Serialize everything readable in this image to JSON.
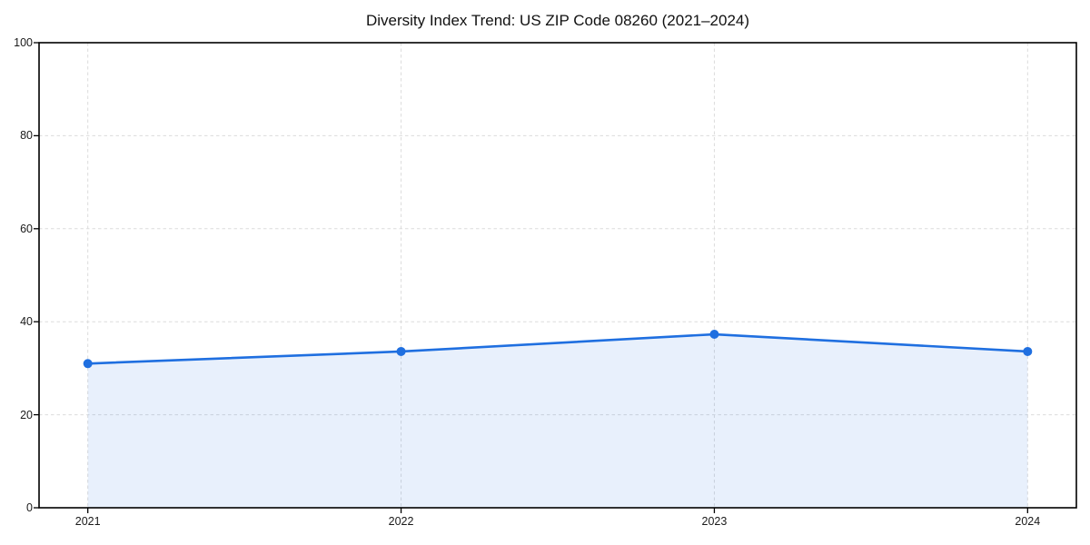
{
  "chart_data": {
    "type": "area",
    "title": "Diversity Index Trend: US ZIP Code 08260 (2021–2024)",
    "series_name": "Diversity Index",
    "categories": [
      "2021",
      "2022",
      "2023",
      "2024"
    ],
    "x": [
      2021,
      2022,
      2023,
      2024
    ],
    "values": [
      31.0,
      33.6,
      37.3,
      33.6
    ],
    "xlabel": "",
    "ylabel": "",
    "ylim": [
      0,
      100
    ],
    "yticks": [
      0,
      20,
      40,
      60,
      80,
      100
    ],
    "grid": true,
    "grid_style": "dashed",
    "legend_position": "none",
    "marker": "circle",
    "marker_radius": 5,
    "line_width": 2.6,
    "x_margin_frac": 0.047,
    "colors": {
      "line": "#1f6fe0",
      "fill": "rgba(31,111,224,0.10)",
      "grid": "#dcdcdc",
      "axis": "#000000",
      "title": "#111111",
      "tick_label": "#1a1a1a",
      "background": "#ffffff"
    }
  }
}
